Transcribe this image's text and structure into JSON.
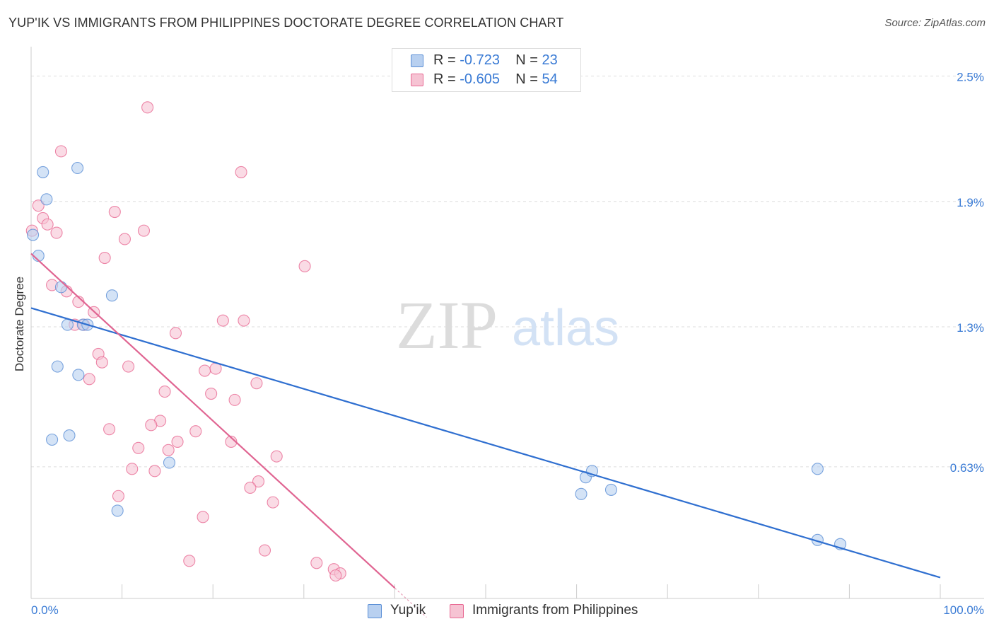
{
  "title": "YUP'IK VS IMMIGRANTS FROM PHILIPPINES DOCTORATE DEGREE CORRELATION CHART",
  "source": "Source: ZipAtlas.com",
  "watermark": {
    "zip": "ZIP",
    "atlas": "atlas"
  },
  "legend": {
    "series1": {
      "r_label": "R =",
      "r_value": "-0.723",
      "n_label": "N =",
      "n_value": "23"
    },
    "series2": {
      "r_label": "R =",
      "r_value": "-0.605",
      "n_label": "N =",
      "n_value": "54"
    }
  },
  "chart_data": {
    "type": "scatter",
    "title": "YUP'IK VS IMMIGRANTS FROM PHILIPPINES DOCTORATE DEGREE CORRELATION CHART",
    "xlabel": "",
    "ylabel": "Doctorate Degree",
    "xlim": [
      0,
      100
    ],
    "ylim": [
      0,
      2.6
    ],
    "x_tick_labels": [
      "0.0%",
      "100.0%"
    ],
    "y_ticks": [
      {
        "value": 2.5,
        "label": "2.5%"
      },
      {
        "value": 1.9,
        "label": "1.9%"
      },
      {
        "value": 1.3,
        "label": "1.3%"
      },
      {
        "value": 0.63,
        "label": "0.63%"
      }
    ],
    "series": [
      {
        "name": "Yup'ik",
        "color": "#5b8fd6",
        "fill": "#b8d0f0",
        "points": [
          [
            1.3,
            2.04
          ],
          [
            5.1,
            2.06
          ],
          [
            1.7,
            1.91
          ],
          [
            0.2,
            1.74
          ],
          [
            0.8,
            1.64
          ],
          [
            3.3,
            1.49
          ],
          [
            8.9,
            1.45
          ],
          [
            4.0,
            1.31
          ],
          [
            5.7,
            1.31
          ],
          [
            6.2,
            1.31
          ],
          [
            2.9,
            1.11
          ],
          [
            5.2,
            1.07
          ],
          [
            2.3,
            0.76
          ],
          [
            4.2,
            0.78
          ],
          [
            15.2,
            0.65
          ],
          [
            9.5,
            0.42
          ],
          [
            60.5,
            0.5
          ],
          [
            61.0,
            0.58
          ],
          [
            61.7,
            0.61
          ],
          [
            63.8,
            0.52
          ],
          [
            86.5,
            0.62
          ],
          [
            86.5,
            0.28
          ],
          [
            89.0,
            0.26
          ]
        ],
        "trendline": {
          "x": [
            0,
            100
          ],
          "y": [
            1.39,
            0.1
          ]
        }
      },
      {
        "name": "Immigrants from Philippines",
        "color": "#e86a94",
        "fill": "#f6c3d3",
        "points": [
          [
            12.8,
            2.35
          ],
          [
            3.3,
            2.14
          ],
          [
            23.1,
            2.04
          ],
          [
            0.8,
            1.88
          ],
          [
            9.2,
            1.85
          ],
          [
            1.3,
            1.82
          ],
          [
            1.8,
            1.79
          ],
          [
            0.1,
            1.76
          ],
          [
            2.8,
            1.75
          ],
          [
            12.4,
            1.76
          ],
          [
            10.3,
            1.72
          ],
          [
            8.1,
            1.63
          ],
          [
            30.1,
            1.59
          ],
          [
            2.3,
            1.5
          ],
          [
            3.9,
            1.47
          ],
          [
            5.2,
            1.42
          ],
          [
            6.9,
            1.37
          ],
          [
            21.1,
            1.33
          ],
          [
            23.4,
            1.33
          ],
          [
            4.8,
            1.31
          ],
          [
            5.8,
            1.31
          ],
          [
            15.9,
            1.27
          ],
          [
            7.4,
            1.17
          ],
          [
            7.8,
            1.13
          ],
          [
            10.7,
            1.11
          ],
          [
            19.1,
            1.09
          ],
          [
            20.3,
            1.1
          ],
          [
            6.4,
            1.05
          ],
          [
            24.8,
            1.03
          ],
          [
            14.7,
            0.99
          ],
          [
            19.8,
            0.98
          ],
          [
            22.4,
            0.95
          ],
          [
            14.2,
            0.85
          ],
          [
            13.2,
            0.83
          ],
          [
            8.6,
            0.81
          ],
          [
            18.1,
            0.8
          ],
          [
            16.1,
            0.75
          ],
          [
            22.0,
            0.75
          ],
          [
            11.8,
            0.72
          ],
          [
            15.1,
            0.71
          ],
          [
            27.0,
            0.68
          ],
          [
            11.1,
            0.62
          ],
          [
            13.6,
            0.61
          ],
          [
            25.0,
            0.56
          ],
          [
            24.1,
            0.53
          ],
          [
            9.6,
            0.49
          ],
          [
            26.6,
            0.46
          ],
          [
            18.9,
            0.39
          ],
          [
            25.7,
            0.23
          ],
          [
            17.4,
            0.18
          ],
          [
            31.4,
            0.17
          ],
          [
            33.3,
            0.14
          ],
          [
            34.0,
            0.12
          ],
          [
            33.5,
            0.11
          ]
        ],
        "trendline": {
          "x": [
            0,
            40
          ],
          "y": [
            1.65,
            0.05
          ]
        }
      }
    ]
  }
}
